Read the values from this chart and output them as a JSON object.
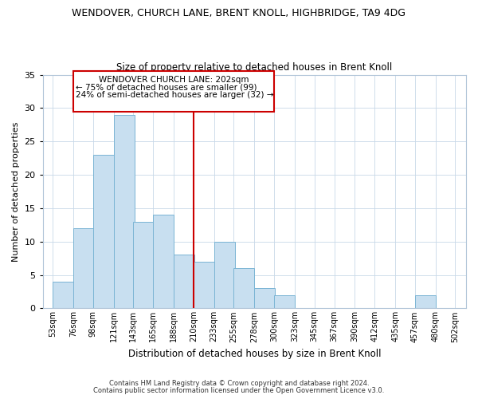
{
  "title": "WENDOVER, CHURCH LANE, BRENT KNOLL, HIGHBRIDGE, TA9 4DG",
  "subtitle": "Size of property relative to detached houses in Brent Knoll",
  "xlabel": "Distribution of detached houses by size in Brent Knoll",
  "ylabel": "Number of detached properties",
  "bar_color": "#c8dff0",
  "bar_edge_color": "#7ab4d4",
  "reference_line_color": "#cc0000",
  "bins_left": [
    53,
    76,
    98,
    121,
    143,
    165,
    188,
    210,
    233,
    255,
    278,
    300,
    323,
    345,
    367,
    390,
    412,
    435,
    457,
    480
  ],
  "bin_width": 23,
  "bar_heights": [
    4,
    12,
    23,
    29,
    13,
    14,
    8,
    7,
    10,
    6,
    3,
    2,
    0,
    0,
    0,
    0,
    0,
    0,
    2,
    0
  ],
  "tick_labels": [
    "53sqm",
    "76sqm",
    "98sqm",
    "121sqm",
    "143sqm",
    "165sqm",
    "188sqm",
    "210sqm",
    "233sqm",
    "255sqm",
    "278sqm",
    "300sqm",
    "323sqm",
    "345sqm",
    "367sqm",
    "390sqm",
    "412sqm",
    "435sqm",
    "457sqm",
    "480sqm",
    "502sqm"
  ],
  "tick_positions": [
    53,
    76,
    98,
    121,
    143,
    165,
    188,
    210,
    233,
    255,
    278,
    300,
    323,
    345,
    367,
    390,
    412,
    435,
    457,
    480,
    502
  ],
  "xlim_left": 42,
  "xlim_right": 514,
  "ylim": [
    0,
    35
  ],
  "yticks": [
    0,
    5,
    10,
    15,
    20,
    25,
    30,
    35
  ],
  "annotation_title": "WENDOVER CHURCH LANE: 202sqm",
  "annotation_line1": "← 75% of detached houses are smaller (99)",
  "annotation_line2": "24% of semi-detached houses are larger (32) →",
  "footer1": "Contains HM Land Registry data © Crown copyright and database right 2024.",
  "footer2": "Contains public sector information licensed under the Open Government Licence v3.0.",
  "reference_x": 210
}
